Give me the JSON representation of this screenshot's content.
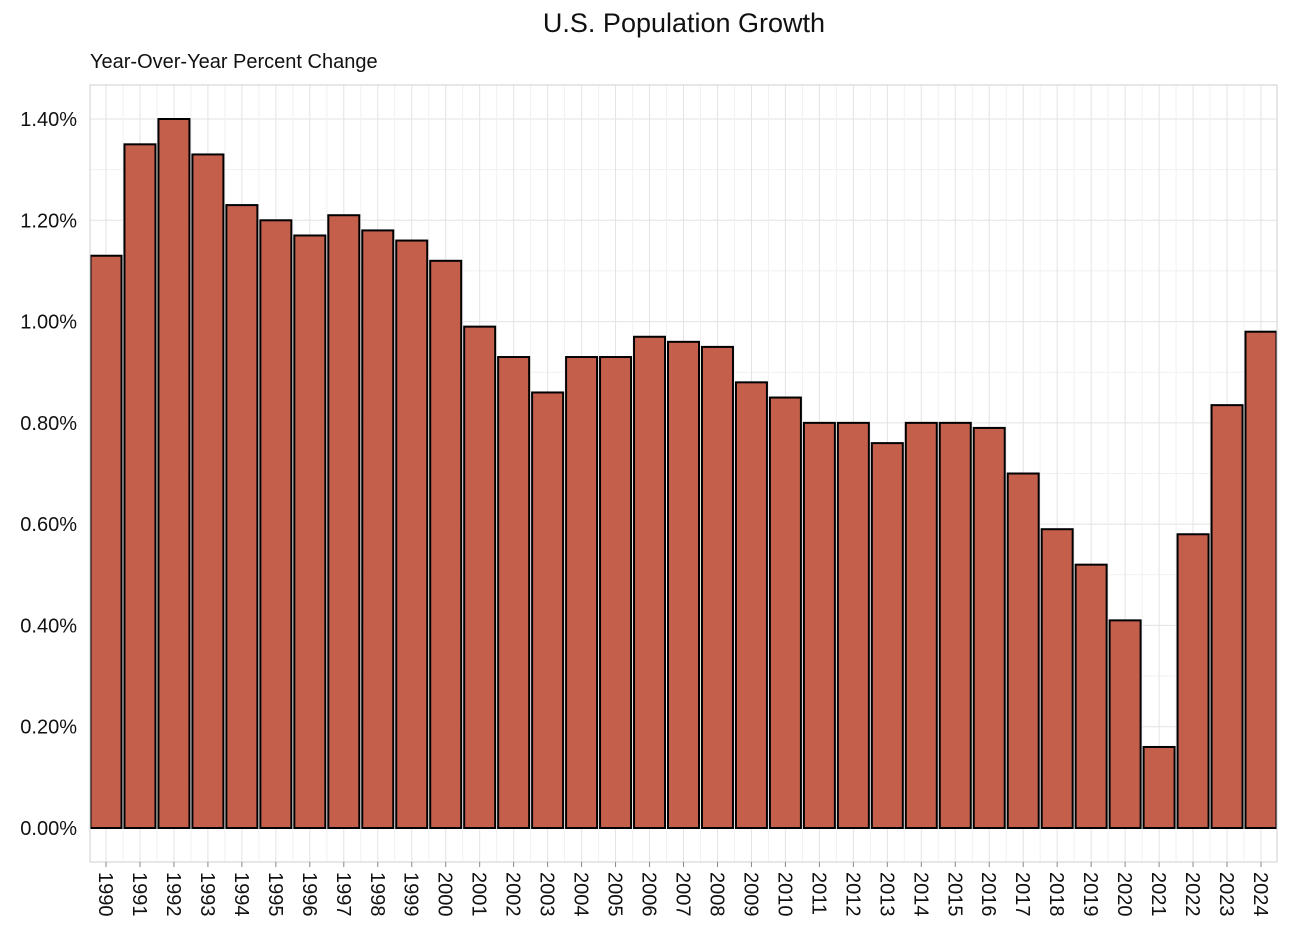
{
  "chart_data": {
    "type": "bar",
    "title": "U.S. Population Growth",
    "subtitle": "Year-Over-Year Percent Change",
    "xlabel": "",
    "ylabel": "",
    "ylim": [
      0,
      1.4
    ],
    "yticks": [
      "0.00%",
      "0.20%",
      "0.40%",
      "0.60%",
      "0.80%",
      "1.00%",
      "1.20%",
      "1.40%"
    ],
    "ytick_values": [
      0,
      0.2,
      0.4,
      0.6,
      0.8,
      1.0,
      1.2,
      1.4
    ],
    "grid": true,
    "bar_color": "#c45f4c",
    "bar_edge_color": "#000000",
    "categories": [
      "1990",
      "1991",
      "1992",
      "1993",
      "1994",
      "1995",
      "1996",
      "1997",
      "1998",
      "1999",
      "2000",
      "2001",
      "2002",
      "2003",
      "2004",
      "2005",
      "2006",
      "2007",
      "2008",
      "2009",
      "2010",
      "2011",
      "2012",
      "2013",
      "2014",
      "2015",
      "2016",
      "2017",
      "2018",
      "2019",
      "2020",
      "2021",
      "2022",
      "2023",
      "2024"
    ],
    "values": [
      1.13,
      1.35,
      1.4,
      1.33,
      1.23,
      1.2,
      1.17,
      1.21,
      1.18,
      1.16,
      1.12,
      0.99,
      0.93,
      0.86,
      0.93,
      0.93,
      0.97,
      0.96,
      0.95,
      0.88,
      0.85,
      0.8,
      0.8,
      0.76,
      0.8,
      0.8,
      0.79,
      0.7,
      0.59,
      0.52,
      0.41,
      0.16,
      0.58,
      0.835,
      0.98
    ]
  }
}
